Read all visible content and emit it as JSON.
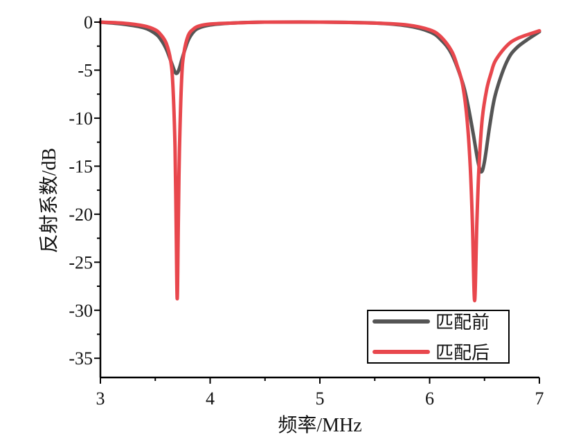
{
  "chart_data": {
    "type": "line",
    "title": "",
    "xlabel": "频率/MHz",
    "ylabel": "反射系数/dB",
    "xlim": [
      3,
      7
    ],
    "ylim": [
      -37,
      0
    ],
    "xticks": [
      3,
      4,
      5,
      6,
      7
    ],
    "yticks": [
      0,
      -5,
      -10,
      -15,
      -20,
      -25,
      -30,
      -35
    ],
    "xtick_labels": [
      "3",
      "4",
      "5",
      "6",
      "7"
    ],
    "ytick_labels": [
      "0",
      "-5",
      "-10",
      "-15",
      "-20",
      "-25",
      "-30",
      "-35"
    ],
    "grid": false,
    "legend": {
      "placement": "bottom-right",
      "entries": [
        "匹配前",
        "匹配后"
      ]
    },
    "series": [
      {
        "name": "匹配前",
        "color": "#555555",
        "x": [
          3.0,
          3.2,
          3.4,
          3.5,
          3.55,
          3.6,
          3.65,
          3.68,
          3.7,
          3.72,
          3.75,
          3.8,
          3.85,
          3.9,
          4.0,
          4.2,
          4.5,
          5.0,
          5.5,
          5.8,
          6.0,
          6.1,
          6.2,
          6.3,
          6.35,
          6.4,
          6.44,
          6.47,
          6.5,
          6.55,
          6.6,
          6.7,
          6.8,
          7.0
        ],
        "y": [
          0.0,
          -0.2,
          -0.6,
          -1.2,
          -1.8,
          -2.8,
          -4.3,
          -5.2,
          -5.3,
          -4.8,
          -3.6,
          -1.9,
          -1.0,
          -0.6,
          -0.3,
          -0.1,
          0.0,
          0.0,
          -0.1,
          -0.4,
          -1.0,
          -1.8,
          -3.3,
          -6.3,
          -8.7,
          -11.8,
          -14.5,
          -15.6,
          -14.5,
          -10.6,
          -7.5,
          -4.2,
          -2.6,
          -1.0
        ]
      },
      {
        "name": "匹配后",
        "color": "#e8474d",
        "x": [
          3.0,
          3.2,
          3.4,
          3.5,
          3.55,
          3.6,
          3.64,
          3.66,
          3.68,
          3.69,
          3.7,
          3.71,
          3.72,
          3.74,
          3.76,
          3.8,
          3.85,
          3.9,
          4.0,
          4.2,
          4.5,
          5.0,
          5.5,
          5.8,
          6.0,
          6.1,
          6.2,
          6.25,
          6.3,
          6.34,
          6.37,
          6.39,
          6.41,
          6.43,
          6.45,
          6.48,
          6.52,
          6.56,
          6.6,
          6.7,
          6.8,
          7.0
        ],
        "y": [
          0.0,
          -0.1,
          -0.4,
          -0.8,
          -1.3,
          -2.2,
          -4.0,
          -6.5,
          -13.0,
          -21.0,
          -28.8,
          -21.0,
          -13.5,
          -6.0,
          -3.3,
          -1.4,
          -0.7,
          -0.4,
          -0.2,
          -0.1,
          0.0,
          0.0,
          -0.1,
          -0.3,
          -0.8,
          -1.5,
          -3.0,
          -4.5,
          -6.5,
          -10.0,
          -15.0,
          -21.0,
          -29.0,
          -21.0,
          -15.0,
          -10.0,
          -7.0,
          -5.3,
          -4.0,
          -2.5,
          -1.7,
          -0.9
        ]
      }
    ]
  }
}
